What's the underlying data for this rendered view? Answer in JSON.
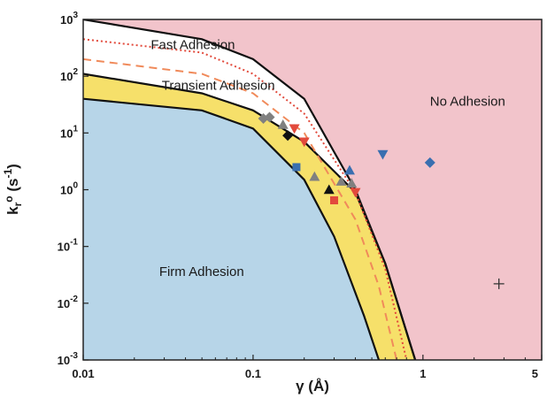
{
  "chart_data": {
    "type": "scatter",
    "xlabel": "γ (Å)",
    "ylabel": "k_r^o (s^-1)",
    "x_scale": "log",
    "y_scale": "log",
    "xlim": [
      0.01,
      5
    ],
    "ylim": [
      0.001,
      1000
    ],
    "x_ticks": [
      {
        "value": 0.01,
        "label": "0.01"
      },
      {
        "value": 0.1,
        "label": "0.1"
      },
      {
        "value": 1,
        "label": "1"
      },
      {
        "value": 5,
        "label": "5"
      }
    ],
    "y_ticks": [
      {
        "value": 1000,
        "label": "10",
        "exp": "3"
      },
      {
        "value": 100,
        "label": "10",
        "exp": "2"
      },
      {
        "value": 10,
        "label": "10",
        "exp": "1"
      },
      {
        "value": 1,
        "label": "10",
        "exp": "0"
      },
      {
        "value": 0.1,
        "label": "10",
        "exp": "-1"
      },
      {
        "value": 0.01,
        "label": "10",
        "exp": "-2"
      },
      {
        "value": 0.001,
        "label": "10",
        "exp": "-3"
      }
    ],
    "grid": false,
    "regions": [
      {
        "name": "No Adhesion",
        "color": "#f2c4cb",
        "label_at": [
          1.1,
          30
        ]
      },
      {
        "name": "Fast Adhesion",
        "color": "#ffffff",
        "label_at": [
          0.025,
          300
        ]
      },
      {
        "name": "Transient Adhesion",
        "color": "#f6e06a",
        "label_at": [
          0.029,
          58
        ]
      },
      {
        "name": "Firm Adhesion",
        "color": "#b7d5e8",
        "label_at": [
          0.028,
          0.03
        ]
      }
    ],
    "boundaries": {
      "fast_upper": [
        [
          0.01,
          1000
        ],
        [
          0.05,
          450
        ],
        [
          0.1,
          200
        ],
        [
          0.2,
          40
        ],
        [
          0.4,
          1
        ],
        [
          0.6,
          0.05
        ],
        [
          0.9,
          0.001
        ]
      ],
      "transient_upper": [
        [
          0.01,
          110
        ],
        [
          0.05,
          50
        ],
        [
          0.1,
          25
        ],
        [
          0.2,
          7
        ],
        [
          0.4,
          0.9
        ],
        [
          0.6,
          0.05
        ],
        [
          0.9,
          0.001
        ]
      ],
      "firm_upper": [
        [
          0.01,
          40
        ],
        [
          0.05,
          25
        ],
        [
          0.1,
          12
        ],
        [
          0.2,
          1.5
        ],
        [
          0.3,
          0.15
        ],
        [
          0.45,
          0.006
        ],
        [
          0.55,
          0.001
        ]
      ]
    },
    "series": [
      {
        "style": "dotted",
        "color": "#e24a3c",
        "values": [
          [
            0.01,
            450
          ],
          [
            0.05,
            260
          ],
          [
            0.1,
            110
          ],
          [
            0.2,
            22
          ],
          [
            0.4,
            0.9
          ],
          [
            0.6,
            0.04
          ],
          [
            0.8,
            0.001
          ]
        ]
      },
      {
        "style": "dashed",
        "color": "#f08a5a",
        "values": [
          [
            0.01,
            200
          ],
          [
            0.05,
            110
          ],
          [
            0.1,
            50
          ],
          [
            0.2,
            10
          ],
          [
            0.4,
            0.3
          ],
          [
            0.55,
            0.02
          ],
          [
            0.7,
            0.001
          ]
        ]
      }
    ],
    "points": [
      {
        "x": 0.115,
        "y": 18,
        "shape": "diamond",
        "color": "#808080"
      },
      {
        "x": 0.125,
        "y": 19,
        "shape": "diamond",
        "color": "#808080"
      },
      {
        "x": 0.15,
        "y": 14,
        "shape": "triangle-up",
        "color": "#808080"
      },
      {
        "x": 0.16,
        "y": 9,
        "shape": "diamond",
        "color": "#111111"
      },
      {
        "x": 0.175,
        "y": 12,
        "shape": "triangle-down",
        "color": "#e24a3c"
      },
      {
        "x": 0.2,
        "y": 7,
        "shape": "triangle-down",
        "color": "#e24a3c"
      },
      {
        "x": 0.18,
        "y": 2.5,
        "shape": "square",
        "color": "#3a6fb0"
      },
      {
        "x": 0.23,
        "y": 1.7,
        "shape": "triangle-up",
        "color": "#808080"
      },
      {
        "x": 0.28,
        "y": 1.0,
        "shape": "triangle-up",
        "color": "#111111"
      },
      {
        "x": 0.3,
        "y": 0.65,
        "shape": "square",
        "color": "#e24a3c"
      },
      {
        "x": 0.33,
        "y": 1.4,
        "shape": "triangle-up",
        "color": "#808080"
      },
      {
        "x": 0.37,
        "y": 2.2,
        "shape": "triangle-up",
        "color": "#3a6fb0"
      },
      {
        "x": 0.38,
        "y": 1.3,
        "shape": "triangle-up",
        "color": "#808080"
      },
      {
        "x": 0.4,
        "y": 0.9,
        "shape": "triangle-down",
        "color": "#e24a3c"
      },
      {
        "x": 0.58,
        "y": 4.2,
        "shape": "triangle-down",
        "color": "#3a6fb0"
      },
      {
        "x": 1.1,
        "y": 3.0,
        "shape": "diamond",
        "color": "#3a6fb0"
      },
      {
        "x": 2.8,
        "y": 0.022,
        "shape": "plus",
        "color": "#333333"
      }
    ]
  }
}
